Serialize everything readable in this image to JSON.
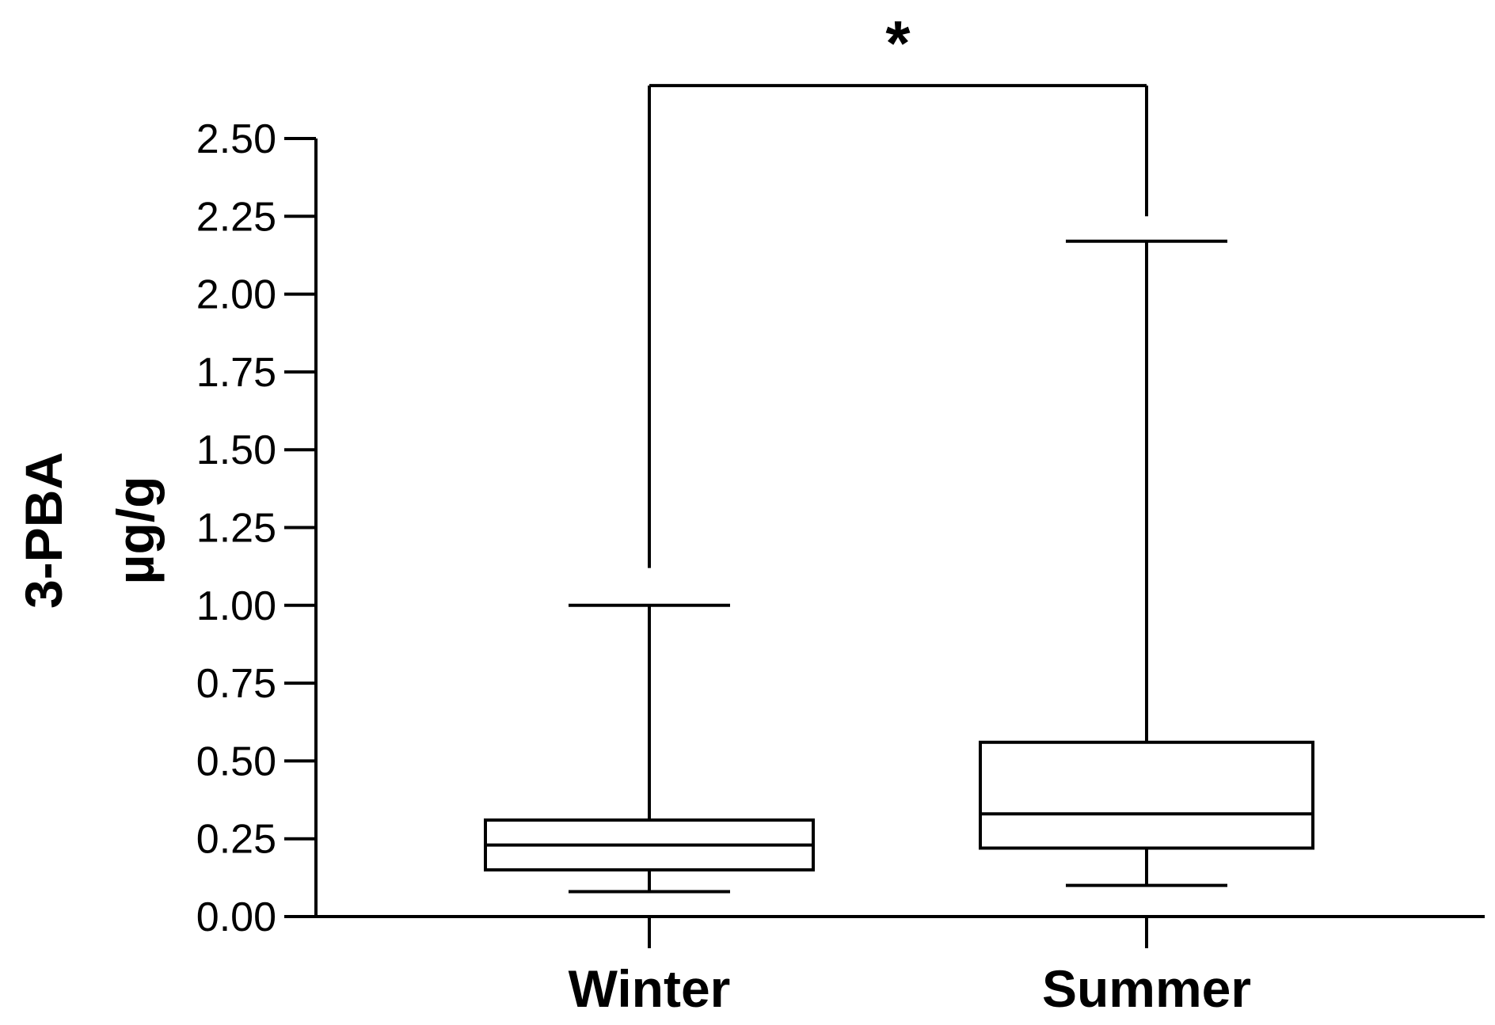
{
  "chart_data": {
    "type": "box",
    "ylabel_lines": [
      "3-PBA",
      "µg/g"
    ],
    "ylim": [
      0,
      2.5
    ],
    "yticks": [
      "0.00",
      "0.25",
      "0.50",
      "0.75",
      "1.00",
      "1.25",
      "1.50",
      "1.75",
      "2.00",
      "2.25",
      "2.50"
    ],
    "categories": [
      "Winter",
      "Summer"
    ],
    "boxes": [
      {
        "category": "Winter",
        "min": 0.08,
        "q1": 0.15,
        "median": 0.23,
        "q3": 0.31,
        "max": 1.0
      },
      {
        "category": "Summer",
        "min": 0.1,
        "q1": 0.22,
        "median": 0.33,
        "q3": 0.56,
        "max": 2.17
      }
    ],
    "significance": {
      "label": "*",
      "from": "Winter",
      "to": "Summer",
      "bracket_y": 2.67,
      "left_drop_to": 1.12,
      "right_drop_to": 2.25
    },
    "colors": {
      "stroke": "#000000",
      "box_fill": "#ffffff"
    }
  }
}
